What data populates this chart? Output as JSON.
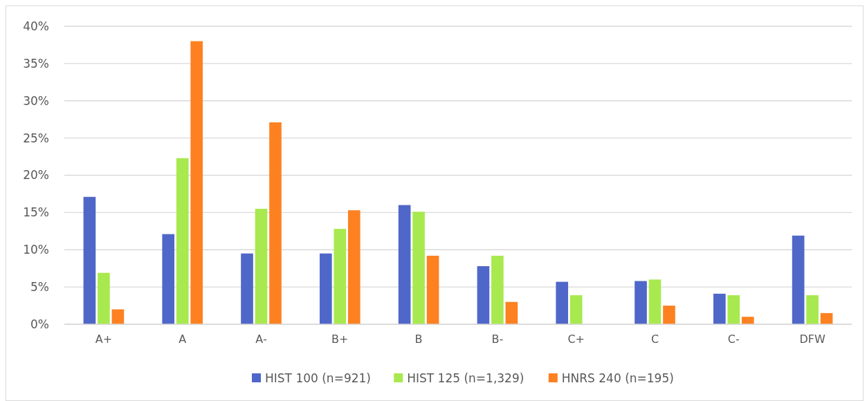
{
  "chart_data": {
    "type": "bar",
    "categories": [
      "A+",
      "A",
      "A-",
      "B+",
      "B",
      "B-",
      "C+",
      "C",
      "C-",
      "DFW"
    ],
    "series": [
      {
        "name": "HIST 100 (n=921)",
        "color": "#4f67c8",
        "values": [
          17.1,
          12.1,
          9.5,
          9.5,
          16.0,
          7.8,
          5.7,
          5.8,
          4.1,
          11.9
        ]
      },
      {
        "name": "HIST 125 (n=1,329)",
        "color": "#a8e94f",
        "values": [
          6.9,
          22.3,
          15.5,
          12.8,
          15.1,
          9.2,
          3.9,
          6.0,
          3.9,
          3.9
        ]
      },
      {
        "name": "HNRS 240 (n=195)",
        "color": "#fd8121",
        "values": [
          2.0,
          38.0,
          27.1,
          15.3,
          9.2,
          3.0,
          null,
          2.5,
          1.0,
          1.5
        ]
      }
    ],
    "ylim": [
      0,
      40
    ],
    "yticks": [
      {
        "value": 0,
        "label": "0%"
      },
      {
        "value": 5,
        "label": "5%"
      },
      {
        "value": 10,
        "label": "10%"
      },
      {
        "value": 15,
        "label": "15%"
      },
      {
        "value": 20,
        "label": "20%"
      },
      {
        "value": 25,
        "label": "25%"
      },
      {
        "value": 30,
        "label": "30%"
      },
      {
        "value": 35,
        "label": "35%"
      },
      {
        "value": 40,
        "label": "40%"
      }
    ],
    "grid": "y",
    "legend": "bottom"
  }
}
